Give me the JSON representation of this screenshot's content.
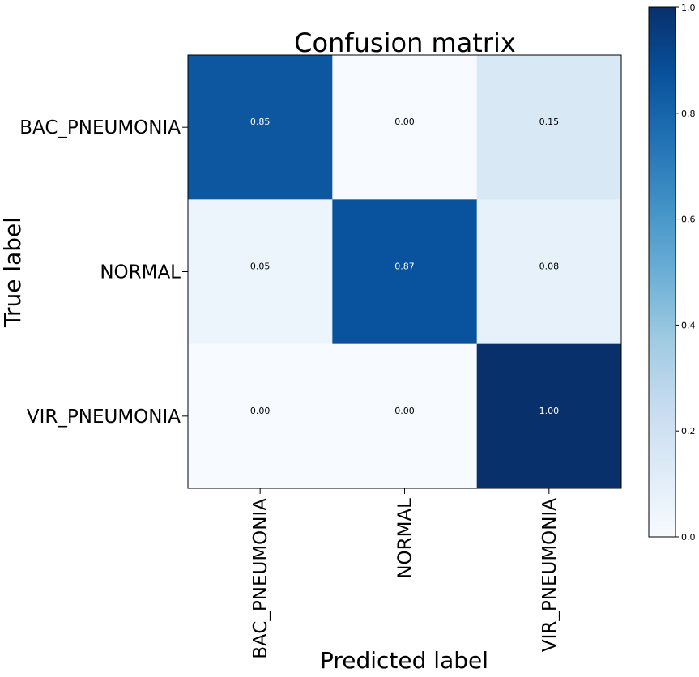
{
  "chart_data": {
    "type": "heatmap",
    "title": "Confusion matrix",
    "xlabel": "Predicted label",
    "ylabel": "True label",
    "x_categories": [
      "BAC_PNEUMONIA",
      "NORMAL",
      "VIR_PNEUMONIA"
    ],
    "y_categories": [
      "BAC_PNEUMONIA",
      "NORMAL",
      "VIR_PNEUMONIA"
    ],
    "values": [
      [
        0.85,
        0.0,
        0.15
      ],
      [
        0.05,
        0.87,
        0.08
      ],
      [
        0.0,
        0.0,
        1.0
      ]
    ],
    "cell_labels": [
      [
        "0.85",
        "0.00",
        "0.15"
      ],
      [
        "0.05",
        "0.87",
        "0.08"
      ],
      [
        "0.00",
        "0.00",
        "1.00"
      ]
    ],
    "colormap": "Blues",
    "vmin": 0,
    "vmax": 1,
    "colorbar_ticks": [
      "0.0",
      "0.2",
      "0.4",
      "0.6",
      "0.8",
      "1.0"
    ],
    "colors": {
      "low": "#f7fbff",
      "high": "#08306b",
      "text_light": "#ffffff",
      "text_dark": "#000000"
    }
  }
}
